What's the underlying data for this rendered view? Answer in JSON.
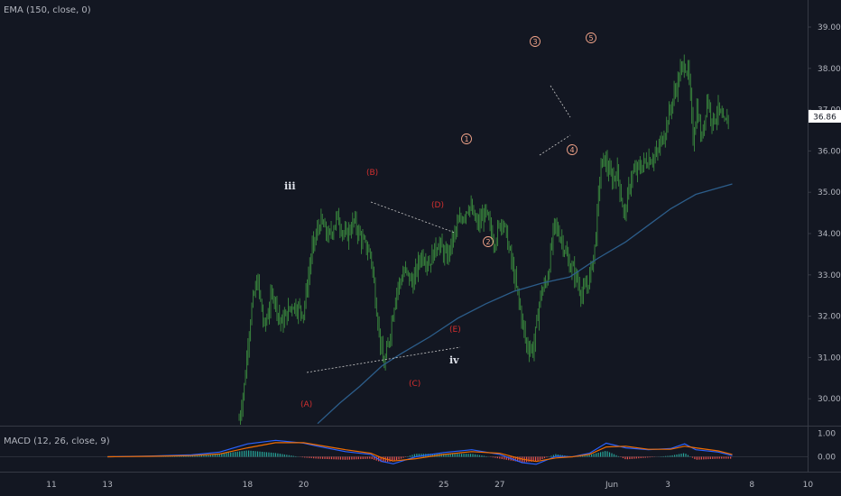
{
  "legend": {
    "ema": "EMA (150, close, 0)",
    "macd": "MACD (12, 26, close, 9)"
  },
  "colors": {
    "background": "#131722",
    "candle": "#3a8a3e",
    "ema": "#2c5d8a",
    "macd": "#2962ff",
    "signal": "#ef6c00",
    "hist_pos": "#26a69a",
    "hist_neg": "#ef5350",
    "price_label": "#ffffff"
  },
  "chart_data": [
    {
      "type": "line",
      "title": "",
      "indicator": "EMA (150, close, 0)",
      "ylim": [
        29.4,
        39.6
      ],
      "y_ticks": [
        "39.00",
        "38.00",
        "37.00",
        "36.00",
        "35.00",
        "34.00",
        "33.00",
        "32.00",
        "31.00",
        "30.00"
      ],
      "last_price": "36.86",
      "x_ticks": [
        "11",
        "13",
        "18",
        "20",
        "25",
        "27",
        "Jun",
        "3",
        "8",
        "10",
        "15"
      ],
      "price_path": [
        [
          17.7,
          29.5
        ],
        [
          17.9,
          30.4
        ],
        [
          18.0,
          31.3
        ],
        [
          18.15,
          32.2
        ],
        [
          18.35,
          32.9
        ],
        [
          18.6,
          31.7
        ],
        [
          18.9,
          32.6
        ],
        [
          19.2,
          31.8
        ],
        [
          19.6,
          32.3
        ],
        [
          20.0,
          32.1
        ],
        [
          20.3,
          33.6
        ],
        [
          20.6,
          34.3
        ],
        [
          20.9,
          33.9
        ],
        [
          21.2,
          34.4
        ],
        [
          21.5,
          33.9
        ],
        [
          21.8,
          34.3
        ],
        [
          22.1,
          33.8
        ],
        [
          22.4,
          33.5
        ],
        [
          22.65,
          31.9
        ],
        [
          22.85,
          30.75
        ],
        [
          23.0,
          31.2
        ],
        [
          23.3,
          32.6
        ],
        [
          23.6,
          33.1
        ],
        [
          23.9,
          32.8
        ],
        [
          24.2,
          33.5
        ],
        [
          24.5,
          33.3
        ],
        [
          24.8,
          33.8
        ],
        [
          25.1,
          33.4
        ],
        [
          25.5,
          34.2
        ],
        [
          25.9,
          34.7
        ],
        [
          26.2,
          34.2
        ],
        [
          26.5,
          34.5
        ],
        [
          26.8,
          33.8
        ],
        [
          27.1,
          34.4
        ],
        [
          27.4,
          33.4
        ],
        [
          27.7,
          32.3
        ],
        [
          27.95,
          31.3
        ],
        [
          28.2,
          31.2
        ],
        [
          28.45,
          32.5
        ],
        [
          28.7,
          32.9
        ],
        [
          28.95,
          34.2
        ],
        [
          29.2,
          33.9
        ],
        [
          29.45,
          33.3
        ],
        [
          29.7,
          33.0
        ],
        [
          29.95,
          32.5
        ],
        [
          30.2,
          32.9
        ],
        [
          30.4,
          33.7
        ],
        [
          30.6,
          35.6
        ],
        [
          30.75,
          35.8
        ],
        [
          31.0,
          35.3
        ],
        [
          31.2,
          35.5
        ],
        [
          31.45,
          34.4
        ],
        [
          31.7,
          35.4
        ],
        [
          32.0,
          35.6
        ],
        [
          32.3,
          35.8
        ],
        [
          32.6,
          35.9
        ],
        [
          32.9,
          36.5
        ],
        [
          33.2,
          37.3
        ],
        [
          33.45,
          37.9
        ],
        [
          33.6,
          38.15
        ],
        [
          33.75,
          37.8
        ],
        [
          33.9,
          36.3
        ],
        [
          34.05,
          37.1
        ],
        [
          34.2,
          36.2
        ],
        [
          34.4,
          37.3
        ],
        [
          34.6,
          36.7
        ],
        [
          34.8,
          37.0
        ],
        [
          35.0,
          36.6
        ],
        [
          35.2,
          36.86
        ]
      ],
      "ema_path": [
        [
          20.5,
          29.4
        ],
        [
          21.3,
          29.9
        ],
        [
          22.0,
          30.3
        ],
        [
          22.8,
          30.8
        ],
        [
          23.5,
          31.1
        ],
        [
          24.5,
          31.5
        ],
        [
          25.5,
          31.95
        ],
        [
          26.5,
          32.3
        ],
        [
          27.5,
          32.6
        ],
        [
          28.5,
          32.8
        ],
        [
          29.5,
          32.95
        ],
        [
          30.5,
          33.4
        ],
        [
          31.5,
          33.8
        ],
        [
          32.3,
          34.2
        ],
        [
          33.1,
          34.6
        ],
        [
          34.0,
          34.95
        ],
        [
          35.3,
          35.2
        ]
      ]
    },
    {
      "type": "line",
      "title": "",
      "indicator": "MACD (12, 26, close, 9)",
      "ylim": [
        -0.55,
        1.25
      ],
      "y_ticks": [
        "1.00",
        "0.00"
      ],
      "macd": [
        [
          13.0,
          0.0
        ],
        [
          14.5,
          0.03
        ],
        [
          16.0,
          0.08
        ],
        [
          17.0,
          0.2
        ],
        [
          18.0,
          0.55
        ],
        [
          19.0,
          0.7
        ],
        [
          20.0,
          0.58
        ],
        [
          20.5,
          0.45
        ],
        [
          21.5,
          0.22
        ],
        [
          22.4,
          0.1
        ],
        [
          22.8,
          -0.2
        ],
        [
          23.2,
          -0.3
        ],
        [
          24.0,
          0.0
        ],
        [
          25.0,
          0.18
        ],
        [
          26.0,
          0.3
        ],
        [
          27.0,
          0.1
        ],
        [
          27.8,
          -0.25
        ],
        [
          28.3,
          -0.32
        ],
        [
          29.0,
          0.02
        ],
        [
          29.6,
          0.0
        ],
        [
          30.2,
          0.15
        ],
        [
          30.8,
          0.58
        ],
        [
          31.5,
          0.38
        ],
        [
          32.3,
          0.3
        ],
        [
          33.1,
          0.35
        ],
        [
          33.6,
          0.55
        ],
        [
          34.0,
          0.3
        ],
        [
          34.8,
          0.2
        ],
        [
          35.3,
          0.05
        ]
      ],
      "signal": [
        [
          13.0,
          0.0
        ],
        [
          14.5,
          0.02
        ],
        [
          16.0,
          0.05
        ],
        [
          17.0,
          0.12
        ],
        [
          18.0,
          0.38
        ],
        [
          19.0,
          0.6
        ],
        [
          20.0,
          0.6
        ],
        [
          20.5,
          0.5
        ],
        [
          21.5,
          0.3
        ],
        [
          22.4,
          0.15
        ],
        [
          22.8,
          -0.05
        ],
        [
          23.2,
          -0.18
        ],
        [
          24.0,
          -0.08
        ],
        [
          25.0,
          0.1
        ],
        [
          26.0,
          0.22
        ],
        [
          27.0,
          0.15
        ],
        [
          27.8,
          -0.1
        ],
        [
          28.3,
          -0.2
        ],
        [
          29.0,
          -0.05
        ],
        [
          29.6,
          0.0
        ],
        [
          30.2,
          0.1
        ],
        [
          30.8,
          0.42
        ],
        [
          31.5,
          0.45
        ],
        [
          32.3,
          0.32
        ],
        [
          33.1,
          0.32
        ],
        [
          33.6,
          0.45
        ],
        [
          34.0,
          0.38
        ],
        [
          34.8,
          0.25
        ],
        [
          35.3,
          0.1
        ]
      ]
    }
  ],
  "waves": {
    "iii": "iii",
    "iv": "iv",
    "A": "(A)",
    "B": "(B)",
    "C": "(C)",
    "D": "(D)",
    "E": "(E)",
    "w1": "1",
    "w2": "2",
    "w3": "3",
    "w4": "4",
    "w5": "5"
  }
}
